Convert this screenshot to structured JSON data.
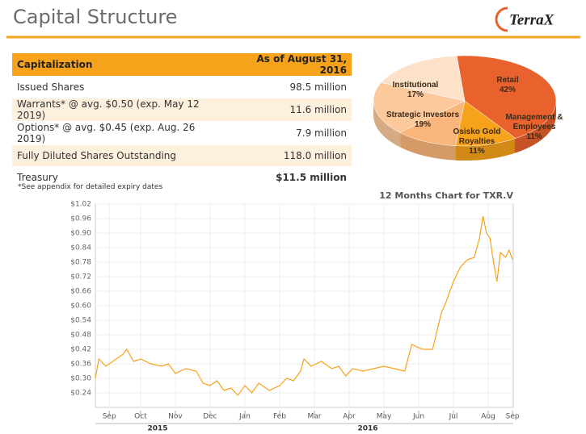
{
  "header": {
    "title": "Capital Structure",
    "logo": "TerraX"
  },
  "table": {
    "columns": [
      "Capitalization",
      "As of August 31, 2016"
    ],
    "rows": [
      [
        "Issued Shares",
        "98.5 million"
      ],
      [
        "Warrants* @ avg. $0.50 (exp. May 12 2019)",
        "11.6 million"
      ],
      [
        "Options* @ avg. $0.45 (exp. Aug. 26 2019)",
        "7.9 million"
      ],
      [
        "Fully Diluted Shares Outstanding",
        "118.0 million"
      ],
      [
        "Treasury",
        "$11.5 million"
      ]
    ]
  },
  "footnote": "*See appendix for detailed expiry dates",
  "chart_data": [
    {
      "type": "pie",
      "categories": [
        "Retail",
        "Management & Employees",
        "Osisko Gold Royalties",
        "Strategic Investors",
        "Institutional"
      ],
      "values": [
        42,
        11,
        11,
        19,
        17
      ],
      "value_labels": [
        "42%",
        "11%",
        "11%",
        "19%",
        "17%"
      ],
      "colors": [
        "#e9622d",
        "#f7a21b",
        "#f9b57a",
        "#fbc99c",
        "#fde1c8"
      ]
    },
    {
      "type": "line",
      "title": "12 Months Chart for TXR.V",
      "x": [
        0.0,
        0.1,
        0.3,
        0.5,
        0.8,
        0.9,
        1.1,
        1.3,
        1.6,
        1.9,
        2.1,
        2.3,
        2.6,
        2.9,
        3.1,
        3.3,
        3.5,
        3.7,
        3.9,
        4.1,
        4.3,
        4.5,
        4.7,
        5.0,
        5.3,
        5.5,
        5.7,
        5.9,
        6.0,
        6.2,
        6.5,
        6.8,
        7.0,
        7.2,
        7.4,
        7.7,
        8.0,
        8.3,
        8.6,
        8.9,
        9.1,
        9.4,
        9.7,
        9.8,
        9.95,
        10.1,
        10.3,
        10.5,
        10.7,
        10.9,
        11.05,
        11.15,
        11.25,
        11.35,
        11.45,
        11.55,
        11.65,
        11.8,
        11.9,
        12.0
      ],
      "values": [
        0.3,
        0.38,
        0.35,
        0.37,
        0.4,
        0.42,
        0.37,
        0.38,
        0.36,
        0.35,
        0.36,
        0.32,
        0.34,
        0.33,
        0.28,
        0.27,
        0.29,
        0.25,
        0.26,
        0.23,
        0.27,
        0.24,
        0.28,
        0.25,
        0.27,
        0.3,
        0.29,
        0.33,
        0.38,
        0.35,
        0.37,
        0.34,
        0.35,
        0.31,
        0.34,
        0.33,
        0.34,
        0.35,
        0.34,
        0.33,
        0.44,
        0.42,
        0.42,
        0.48,
        0.57,
        0.62,
        0.7,
        0.76,
        0.79,
        0.8,
        0.88,
        0.97,
        0.9,
        0.88,
        0.78,
        0.7,
        0.82,
        0.8,
        0.83,
        0.79
      ],
      "color": "#f7a21b",
      "xlim": [
        0,
        12.02
      ],
      "xticks": [
        {
          "value": 0.4,
          "label": "Sep"
        },
        {
          "value": 1.3,
          "label": "Oct"
        },
        {
          "value": 2.3,
          "label": "Nov"
        },
        {
          "value": 3.3,
          "label": "Dec"
        },
        {
          "value": 4.3,
          "label": "Jan"
        },
        {
          "value": 5.3,
          "label": "Feb"
        },
        {
          "value": 6.3,
          "label": "Mar"
        },
        {
          "value": 7.3,
          "label": "Apr"
        },
        {
          "value": 8.3,
          "label": "May"
        },
        {
          "value": 9.3,
          "label": "Jun"
        },
        {
          "value": 10.3,
          "label": "Jul"
        },
        {
          "value": 11.3,
          "label": "Aug"
        },
        {
          "value": 12.0,
          "label": "Sep"
        }
      ],
      "year_labels": [
        "2015",
        "2016"
      ],
      "ylim": [
        0.18,
        1.02
      ],
      "yticks": [
        {
          "value": 0.24,
          "label": "$0.24"
        },
        {
          "value": 0.3,
          "label": "$0.30"
        },
        {
          "value": 0.36,
          "label": "$0.36"
        },
        {
          "value": 0.42,
          "label": "$0.42"
        },
        {
          "value": 0.48,
          "label": "$0.48"
        },
        {
          "value": 0.54,
          "label": "$0.54"
        },
        {
          "value": 0.6,
          "label": "$0.60"
        },
        {
          "value": 0.66,
          "label": "$0.66"
        },
        {
          "value": 0.72,
          "label": "$0.72"
        },
        {
          "value": 0.78,
          "label": "$0.78"
        },
        {
          "value": 0.84,
          "label": "$0.84"
        },
        {
          "value": 0.9,
          "label": "$0.90"
        },
        {
          "value": 0.96,
          "label": "$0.96"
        },
        {
          "value": 1.02,
          "label": "$1.02"
        }
      ],
      "grid": true
    }
  ]
}
